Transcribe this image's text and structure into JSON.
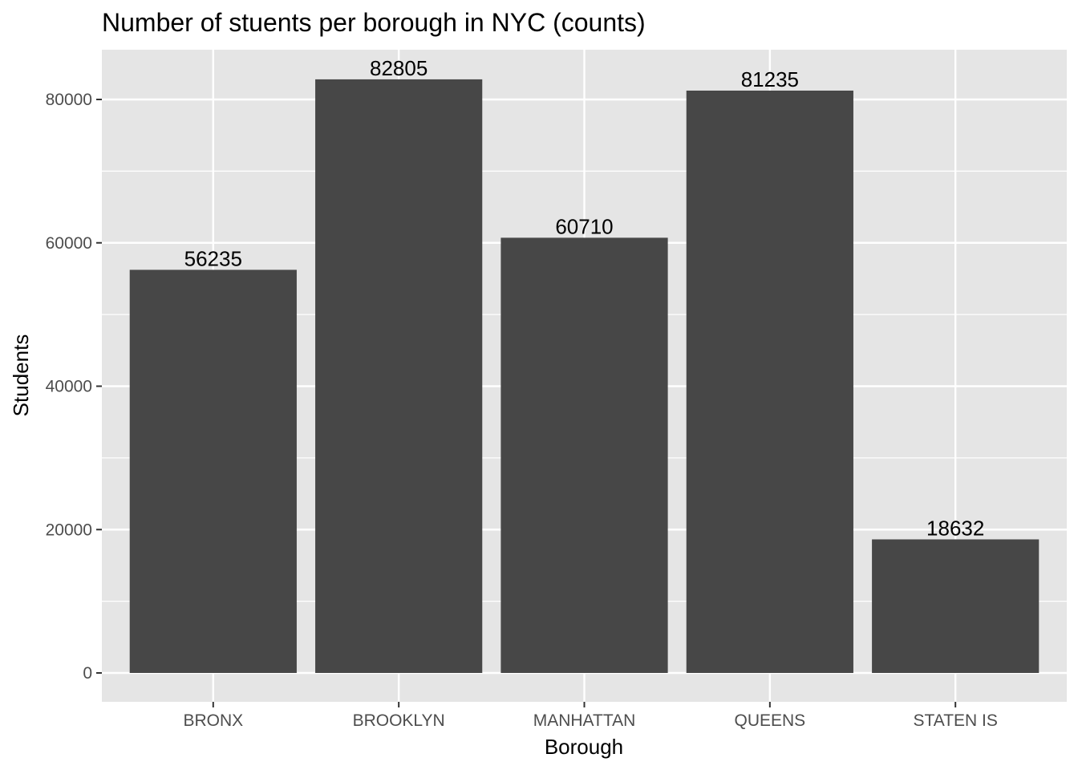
{
  "chart_data": {
    "type": "bar",
    "title": "Number of stuents per borough in NYC (counts)",
    "xlabel": "Borough",
    "ylabel": "Students",
    "categories": [
      "BRONX",
      "BROOKLYN",
      "MANHATTAN",
      "QUEENS",
      "STATEN IS"
    ],
    "values": [
      56235,
      82805,
      60710,
      81235,
      18632
    ],
    "data_labels": [
      "56235",
      "82805",
      "60710",
      "81235",
      "18632"
    ],
    "ylim": [
      0,
      86945
    ],
    "yticks": [
      0,
      20000,
      40000,
      60000,
      80000
    ],
    "ytick_labels": [
      "0",
      "20000",
      "40000",
      "60000",
      "80000"
    ],
    "grid": true,
    "legend": "none",
    "colors": {
      "bar": "#474747",
      "panel": "#e5e5e5",
      "grid": "#ffffff"
    }
  }
}
